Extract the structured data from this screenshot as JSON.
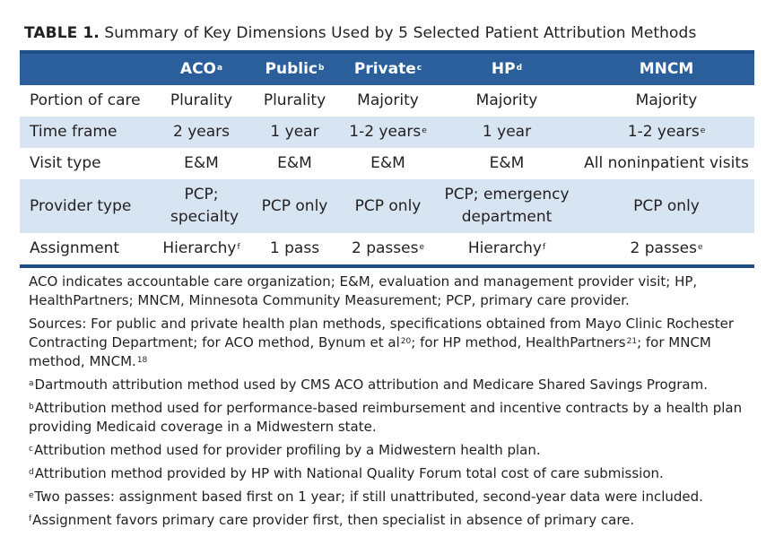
{
  "title": {
    "label": "TABLE 1.",
    "text": "Summary of Key Dimensions Used by 5 Selected Patient Attribution Methods"
  },
  "table": {
    "headers": [
      {
        "label": "",
        "sup": ""
      },
      {
        "label": "ACO",
        "sup": "a"
      },
      {
        "label": "Public",
        "sup": "b"
      },
      {
        "label": "Private",
        "sup": "c"
      },
      {
        "label": "HP",
        "sup": "d"
      },
      {
        "label": "MNCM",
        "sup": ""
      }
    ],
    "rows": [
      {
        "label": "Portion of care",
        "cells": [
          {
            "text": "Plurality",
            "sup": ""
          },
          {
            "text": "Plurality",
            "sup": ""
          },
          {
            "text": "Majority",
            "sup": ""
          },
          {
            "text": "Majority",
            "sup": ""
          },
          {
            "text": "Majority",
            "sup": ""
          }
        ]
      },
      {
        "label": "Time frame",
        "cells": [
          {
            "text": "2 years",
            "sup": ""
          },
          {
            "text": "1 year",
            "sup": ""
          },
          {
            "text": "1-2 years",
            "sup": "e"
          },
          {
            "text": "1 year",
            "sup": ""
          },
          {
            "text": "1-2 years",
            "sup": "e"
          }
        ]
      },
      {
        "label": "Visit type",
        "cells": [
          {
            "text": "E&M",
            "sup": ""
          },
          {
            "text": "E&M",
            "sup": ""
          },
          {
            "text": "E&M",
            "sup": ""
          },
          {
            "text": "E&M",
            "sup": ""
          },
          {
            "text": "All noninpatient visits",
            "sup": ""
          }
        ]
      },
      {
        "label": "Provider type",
        "cells": [
          {
            "text": "PCP; specialty",
            "sup": ""
          },
          {
            "text": "PCP only",
            "sup": ""
          },
          {
            "text": "PCP only",
            "sup": ""
          },
          {
            "text": "PCP; emergency department",
            "sup": ""
          },
          {
            "text": "PCP only",
            "sup": ""
          }
        ]
      },
      {
        "label": "Assignment",
        "cells": [
          {
            "text": "Hierarchy",
            "sup": "f"
          },
          {
            "text": "1 pass",
            "sup": ""
          },
          {
            "text": "2 passes",
            "sup": "e"
          },
          {
            "text": "Hierarchy",
            "sup": "f"
          },
          {
            "text": "2 passes",
            "sup": "e"
          }
        ]
      }
    ]
  },
  "abbreviations": "ACO indicates accountable care organization; E&M, evaluation and management provider visit; HP, HealthPartners; MNCM, Minnesota Community Measurement; PCP, primary care provider.",
  "sources": {
    "part1": "Sources: For public and private health plan methods, specifications obtained from Mayo Clinic Rochester Contracting Department; for ACO method, Bynum et al",
    "ref1": "20",
    "part2": "; for HP method, HealthPartners",
    "ref2": "21",
    "part3": "; for MNCM method, MNCM.",
    "ref3": "18"
  },
  "footnotes": [
    {
      "mark": "a",
      "text": "Dartmouth attribution method used by CMS ACO attribution and Medicare Shared Savings Program."
    },
    {
      "mark": "b",
      "text": "Attribution method used for performance-based reimbursement and incentive contracts by a health plan providing Medicaid coverage in a Midwestern state."
    },
    {
      "mark": "c",
      "text": "Attribution method used for provider profiling by a Midwestern health plan."
    },
    {
      "mark": "d",
      "text": "Attribution method provided by HP with National Quality Forum total cost of care submission."
    },
    {
      "mark": "e",
      "text": "Two passes: assignment based first on 1 year; if still unattributed, second-year data were included."
    },
    {
      "mark": "f",
      "text": "Assignment favors primary care provider first, then specialist in absence of primary care."
    }
  ],
  "colors": {
    "header_bg": "#2a5f9b",
    "band_bg": "#d7e4f1",
    "rule": "#1e4f86"
  }
}
